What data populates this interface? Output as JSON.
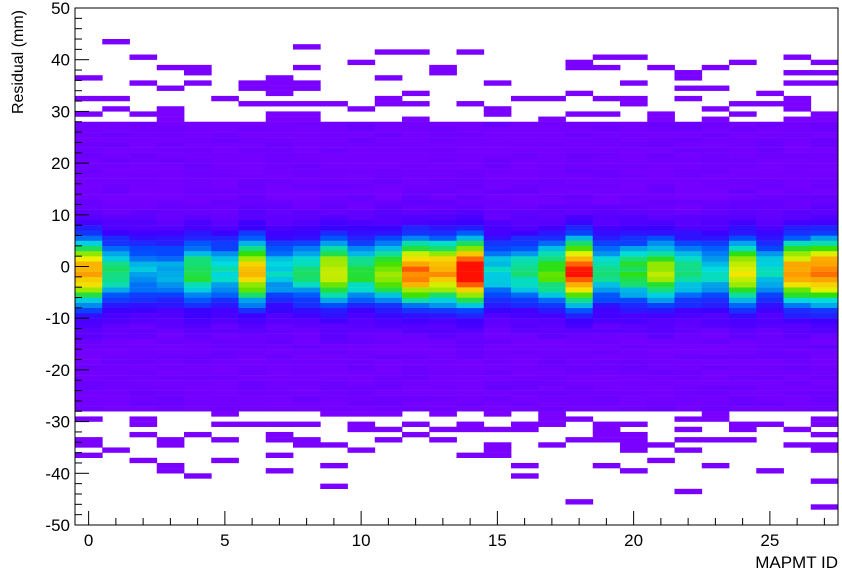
{
  "chart_data": {
    "type": "heatmap",
    "title": "",
    "xlabel": "MAPMT ID",
    "ylabel": "Residual (mm)",
    "xlim": [
      -0.5,
      27.5
    ],
    "ylim": [
      -50,
      50
    ],
    "x_ticks": [
      0,
      5,
      10,
      15,
      20,
      25
    ],
    "y_ticks": [
      -50,
      -40,
      -30,
      -20,
      -10,
      0,
      10,
      20,
      30,
      40,
      50
    ],
    "x_tick_labels": [
      "0",
      "5",
      "10",
      "15",
      "20",
      "25"
    ],
    "y_tick_labels": [
      "-50",
      "-40",
      "-30",
      "-20",
      "-10",
      "0",
      "10",
      "20",
      "30",
      "40",
      "50"
    ],
    "grid": false,
    "colormap": "rainbow (violet low, blue, cyan, green, yellow, orange, red high)",
    "colors": {
      "low": "#7a00ff",
      "mid_low": "#0050ff",
      "mid": "#00e0e0",
      "mid_high": "#30e000",
      "high_yellow": "#f0f000",
      "high_orange": "#ff9000",
      "max": "#ff1000"
    },
    "bins": {
      "x_bin_width": 1,
      "y_bin_width": 1,
      "y_range_dense": [
        -28,
        28
      ]
    },
    "peak_center_y": -1,
    "series_peak_intensity": [
      0.85,
      0.55,
      0.45,
      0.45,
      0.6,
      0.5,
      0.8,
      0.5,
      0.55,
      0.75,
      0.6,
      0.7,
      0.9,
      0.85,
      1.0,
      0.5,
      0.55,
      0.65,
      0.95,
      0.55,
      0.6,
      0.7,
      0.55,
      0.5,
      0.75,
      0.5,
      0.85,
      0.9
    ]
  }
}
